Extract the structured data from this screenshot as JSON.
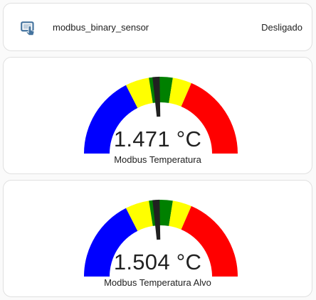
{
  "entity_card": {
    "icon": "binary-sensor-icon",
    "name": "modbus_binary_sensor",
    "state": "Desligado"
  },
  "gauges": [
    {
      "value_text": "1.471 °C",
      "name": "Modbus Temperatura",
      "needle_fraction": 0.48
    },
    {
      "value_text": "1.504 °C",
      "name": "Modbus Temperatura Alvo",
      "needle_fraction": 0.48
    }
  ],
  "segments": [
    {
      "color": "#0000ff",
      "from": 0.0,
      "to": 0.35
    },
    {
      "color": "#ffff00",
      "from": 0.35,
      "to": 0.45
    },
    {
      "color": "#008000",
      "from": 0.45,
      "to": 0.55
    },
    {
      "color": "#ffff00",
      "from": 0.55,
      "to": 0.63
    },
    {
      "color": "#ff0000",
      "from": 0.63,
      "to": 1.0
    }
  ],
  "colors": {
    "needle": "#212121",
    "icon": "#44739e"
  }
}
